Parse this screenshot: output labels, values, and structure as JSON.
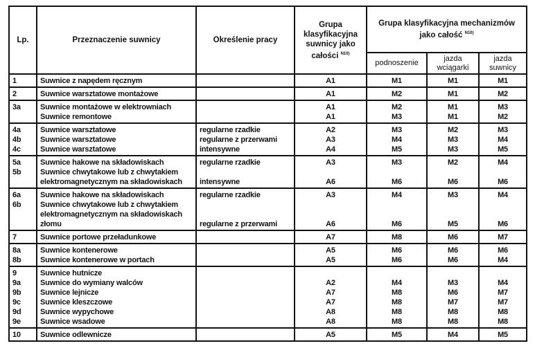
{
  "header": {
    "lp": "Lp.",
    "purpose": "Przeznaczenie suwnicy",
    "work": "Określenie pracy",
    "group_crane": "Grupa klasyfikacyjna suwnicy jako całości",
    "group_crane_note": "N10)",
    "group_mech": "Grupa klasyfikacyjna mechanizmów jako całość",
    "group_mech_note": "N10)",
    "sub_lift": "podnoszenie",
    "sub_trolley": "jazda wciągarki",
    "sub_crane": "jazda suwnicy"
  },
  "rows": [
    {
      "lp": [
        "1"
      ],
      "desc": [
        "Suwnice z napędem ręcznym"
      ],
      "work": [
        ""
      ],
      "grp": [
        "A1"
      ],
      "lift": [
        "M1"
      ],
      "trolley": [
        "M1"
      ],
      "crane": [
        "M1"
      ]
    },
    {
      "lp": [
        "2"
      ],
      "desc": [
        "Suwnice warsztatowe montażowe"
      ],
      "work": [
        ""
      ],
      "grp": [
        "A1"
      ],
      "lift": [
        "M2"
      ],
      "trolley": [
        "M1"
      ],
      "crane": [
        "M2"
      ]
    },
    {
      "lp": [
        "3a",
        ""
      ],
      "desc": [
        "Suwnice montażowe w elektrowniach",
        "Suwnice remontowe"
      ],
      "work": [
        "",
        ""
      ],
      "grp": [
        "A1",
        "A1"
      ],
      "lift": [
        "M2",
        "M3"
      ],
      "trolley": [
        "M1",
        "M1"
      ],
      "crane": [
        "M3",
        "M2"
      ]
    },
    {
      "lp": [
        "4a",
        "4b",
        "4c"
      ],
      "desc": [
        "Suwnice warsztatowe",
        "Suwnice warsztatowe",
        "Suwnice warsztatowe"
      ],
      "work": [
        "regularne rzadkie",
        "regularne z przerwami",
        "intensywne"
      ],
      "grp": [
        "A2",
        "A3",
        "A4"
      ],
      "lift": [
        "M3",
        "M4",
        "M5"
      ],
      "trolley": [
        "M2",
        "M3",
        "M3"
      ],
      "crane": [
        "M3",
        "M4",
        "M5"
      ]
    },
    {
      "lp": [
        "5a",
        "5b",
        ""
      ],
      "desc": [
        "Suwnice hakowe na składowiskach",
        "Suwnice chwytakowe lub z chwytakiem",
        "elektromagnetycznym na składowiskach"
      ],
      "work": [
        "regularne rzadkie",
        "",
        "intensywne"
      ],
      "grp": [
        "A3",
        "",
        "A6"
      ],
      "lift": [
        "M3",
        "",
        "M6"
      ],
      "trolley": [
        "M2",
        "",
        "M6"
      ],
      "crane": [
        "M4",
        "",
        "M6"
      ]
    },
    {
      "lp": [
        "6a",
        "6b",
        "",
        ""
      ],
      "desc": [
        "Suwnice hakowe na składowiskach",
        "Suwnice chwytakowe lub z chwytakiem",
        "elektromagnetycznym na składowiskach",
        "złomu"
      ],
      "work": [
        "regularne rzadkie",
        "",
        "",
        "regularne z przerwami"
      ],
      "grp": [
        "A3",
        "",
        "",
        "A6"
      ],
      "lift": [
        "M4",
        "",
        "",
        "M6"
      ],
      "trolley": [
        "M3",
        "",
        "",
        "M5"
      ],
      "crane": [
        "M4",
        "",
        "",
        "M6"
      ]
    },
    {
      "lp": [
        "7"
      ],
      "desc": [
        "Suwnice portowe przeładunkowe"
      ],
      "work": [
        ""
      ],
      "grp": [
        "A7"
      ],
      "lift": [
        "M8"
      ],
      "trolley": [
        "M6"
      ],
      "crane": [
        "M7"
      ]
    },
    {
      "lp": [
        "8a",
        "8b"
      ],
      "desc": [
        "Suwnice kontenerowe",
        "Suwnice kontenerowe w  portach"
      ],
      "work": [
        "",
        ""
      ],
      "grp": [
        "A5",
        "A5"
      ],
      "lift": [
        "M6",
        "M6"
      ],
      "trolley": [
        "M6",
        "M6"
      ],
      "crane": [
        "M6",
        "M4"
      ]
    },
    {
      "lp": [
        "9",
        "9a",
        "9b",
        "9c",
        "9d",
        "9e"
      ],
      "desc": [
        "Suwnice hutnicze",
        "Suwnice do wymiany walców",
        "Suwnice lejnicze",
        "Suwnice kleszczowe",
        "Suwnice wypychowe",
        "Suwnice wsadowe"
      ],
      "work": [
        "",
        "",
        "",
        "",
        "",
        ""
      ],
      "grp": [
        "",
        "A2",
        "A7",
        "A7",
        "A8",
        "A8"
      ],
      "lift": [
        "",
        "M4",
        "M8",
        "M8",
        "M8",
        "M8"
      ],
      "trolley": [
        "",
        "M3",
        "M6",
        "M7",
        "M8",
        "M8"
      ],
      "crane": [
        "",
        "M4",
        "M7",
        "M7",
        "M8",
        "M8"
      ]
    },
    {
      "lp": [
        "10"
      ],
      "desc": [
        "Suwnice odlewnicze"
      ],
      "work": [
        ""
      ],
      "grp": [
        "A5"
      ],
      "lift": [
        "M5"
      ],
      "trolley": [
        "M4"
      ],
      "crane": [
        "M5"
      ]
    }
  ]
}
